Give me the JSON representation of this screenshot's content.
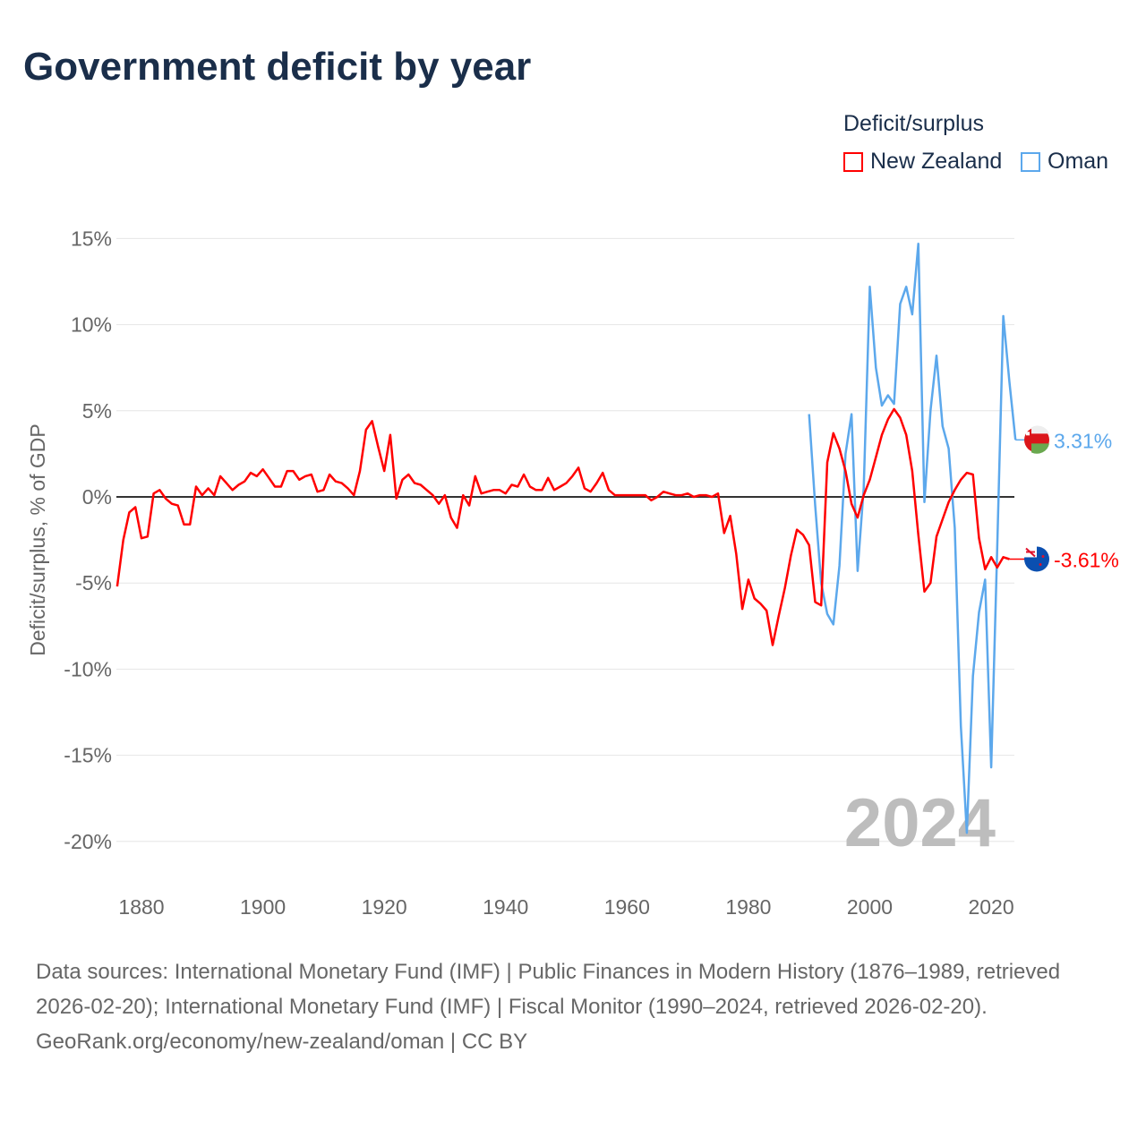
{
  "title": "Government deficit by year",
  "legend": {
    "title": "Deficit/surplus",
    "items": [
      {
        "label": "New Zealand",
        "color": "#ff0000"
      },
      {
        "label": "Oman",
        "color": "#5ca8ec"
      }
    ]
  },
  "year_watermark": "2024",
  "chart_data": {
    "type": "line",
    "title": "Government deficit by year",
    "xlabel": "",
    "ylabel": "Deficit/surplus, % of GDP",
    "xlim": [
      1876,
      2024
    ],
    "ylim": [
      -22,
      16
    ],
    "x_ticks": [
      1880,
      1900,
      1920,
      1940,
      1960,
      1980,
      2000,
      2020
    ],
    "y_ticks": [
      15,
      10,
      5,
      0,
      -5,
      -10,
      -15,
      -20
    ],
    "y_tick_labels": [
      "15%",
      "10%",
      "5%",
      "0%",
      "-5%",
      "-10%",
      "-15%",
      "-20%"
    ],
    "legend_position": "top-right",
    "series": [
      {
        "name": "New Zealand",
        "color": "#ff0000",
        "start_year": 1876,
        "end_label": "-3.61%",
        "values": [
          -5.2,
          -2.5,
          -0.9,
          -0.6,
          -2.4,
          -2.3,
          0.2,
          0.4,
          -0.1,
          -0.4,
          -0.5,
          -1.6,
          -1.6,
          0.6,
          0.1,
          0.5,
          0.1,
          1.2,
          0.8,
          0.4,
          0.7,
          0.9,
          1.4,
          1.2,
          1.6,
          1.1,
          0.6,
          0.6,
          1.5,
          1.5,
          1.0,
          1.2,
          1.3,
          0.3,
          0.4,
          1.3,
          0.9,
          0.8,
          0.5,
          0.1,
          1.5,
          3.9,
          4.4,
          2.9,
          1.5,
          3.6,
          -0.1,
          1.0,
          1.3,
          0.8,
          0.7,
          0.4,
          0.1,
          -0.4,
          0.1,
          -1.2,
          -1.8,
          0.1,
          -0.5,
          1.2,
          0.2,
          0.3,
          0.4,
          0.4,
          0.2,
          0.7,
          0.6,
          1.3,
          0.6,
          0.4,
          0.4,
          1.1,
          0.4,
          0.6,
          0.8,
          1.2,
          1.7,
          0.5,
          0.3,
          0.8,
          1.4,
          0.4,
          0.1,
          0.1,
          0.1,
          0.1,
          0.1,
          0.1,
          -0.2,
          0.0,
          0.3,
          0.2,
          0.1,
          0.1,
          0.2,
          0.0,
          0.1,
          0.1,
          0.0,
          0.2,
          -2.1,
          -1.1,
          -3.3,
          -6.5,
          -4.8,
          -5.9,
          -6.2,
          -6.6,
          -8.6,
          -6.9,
          -5.3,
          -3.4,
          -1.9,
          -2.2,
          -2.8,
          -6.1,
          -6.3,
          2.0,
          3.7,
          2.8,
          1.5,
          -0.4,
          -1.2,
          0.1,
          1.0,
          2.3,
          3.6,
          4.5,
          5.1,
          4.6,
          3.6,
          1.5,
          -2.2,
          -5.5,
          -5.0,
          -2.3,
          -1.3,
          -0.3,
          0.4,
          1.0,
          1.4,
          1.3,
          -2.4,
          -4.2,
          -3.5,
          -4.1,
          -3.5,
          -3.61
        ]
      },
      {
        "name": "Oman",
        "color": "#5ca8ec",
        "start_year": 1990,
        "end_label": "3.31%",
        "values": [
          4.8,
          -0.5,
          -5.0,
          -6.8,
          -7.4,
          -4.0,
          2.5,
          4.8,
          -4.3,
          0.5,
          12.2,
          7.5,
          5.3,
          5.9,
          5.4,
          11.2,
          12.2,
          10.6,
          14.7,
          -0.3,
          5.0,
          8.2,
          4.1,
          2.8,
          -1.8,
          -13.3,
          -19.5,
          -10.4,
          -6.7,
          -4.8,
          -15.7,
          -3.0,
          10.5,
          6.7,
          3.31
        ]
      }
    ]
  },
  "sources": {
    "line1": "Data sources: International Monetary Fund (IMF) | Public Finances in Modern History (1876–1989, retrieved 2026-02-20); International Monetary Fund (IMF) | Fiscal Monitor (1990–2024, retrieved 2026-02-20).",
    "line2": "GeoRank.org/economy/new-zealand/oman | CC BY"
  }
}
